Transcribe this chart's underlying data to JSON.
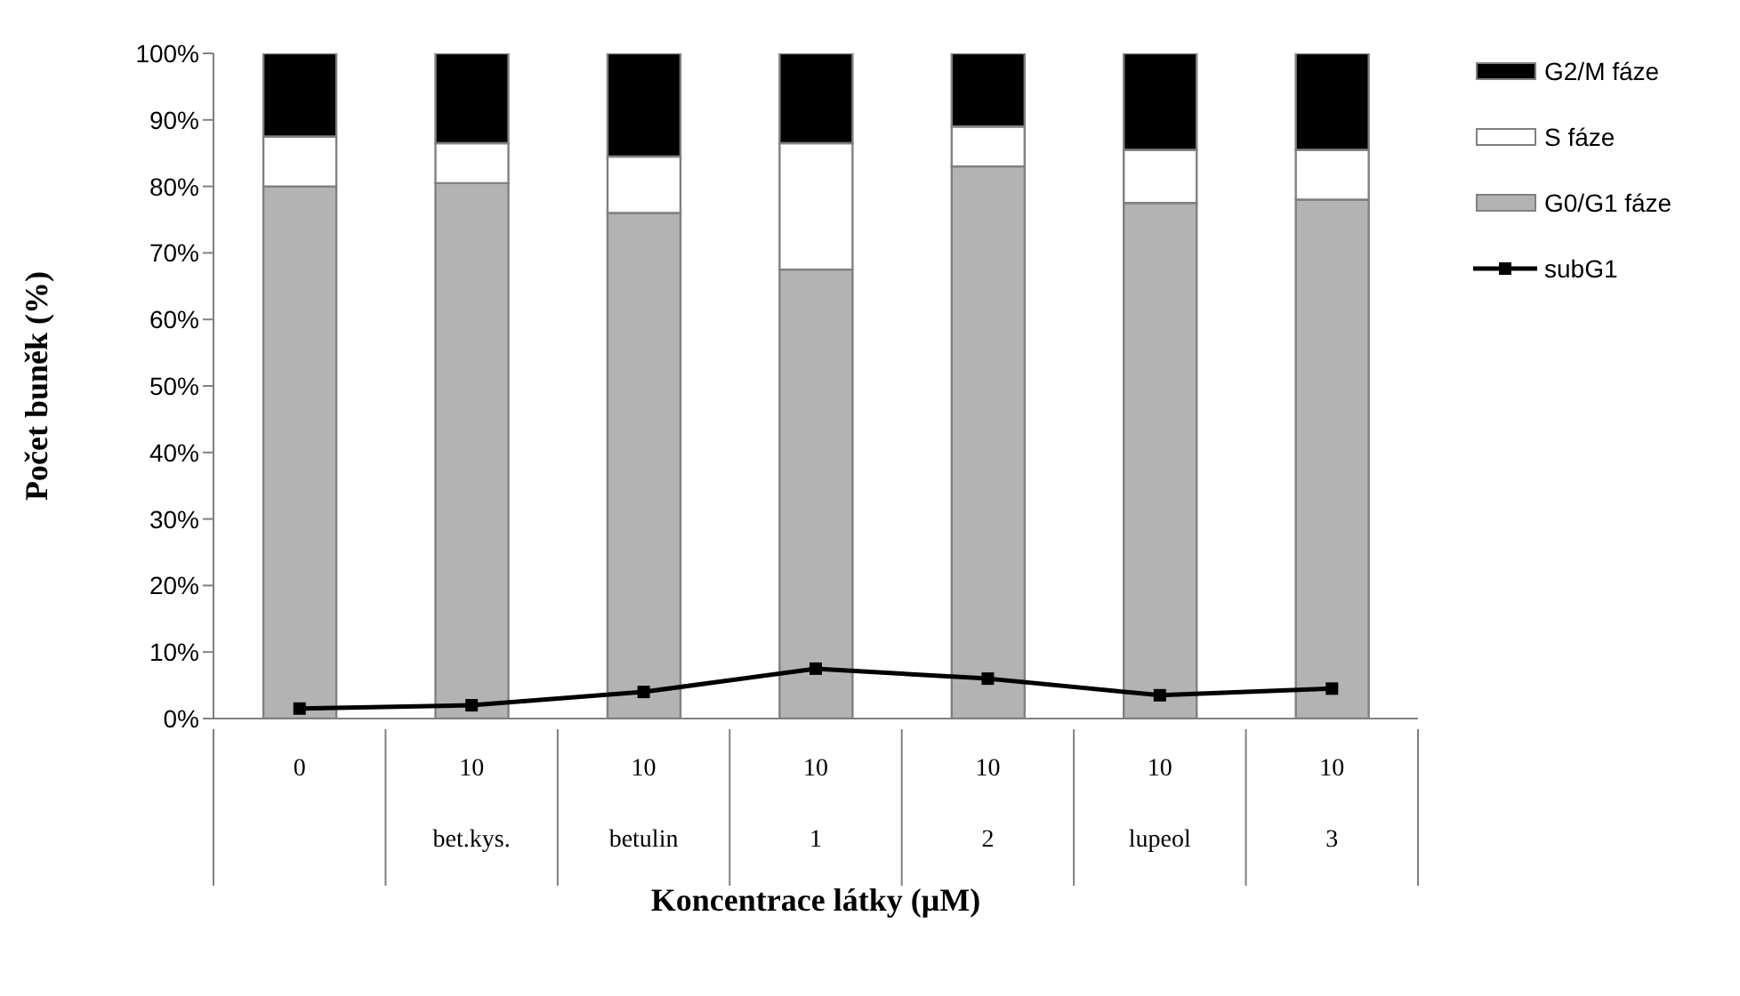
{
  "chart_data": {
    "type": "bar",
    "stacked": true,
    "xlabel": "Koncentrace látky (μM)",
    "ylabel": "Počet buněk (%)",
    "categories": [
      "0",
      "10\nbet.kys.",
      "10\nbetulin",
      "10\n1",
      "10\n2",
      "10\nlupeol",
      "10\n3"
    ],
    "series": [
      {
        "name": "G0/G1 fáze",
        "type": "bar",
        "color": "#b3b3b3",
        "values": [
          80,
          80.5,
          76,
          67.5,
          83,
          77.5,
          78
        ]
      },
      {
        "name": "S fáze",
        "type": "bar",
        "color": "#ffffff",
        "values": [
          7.5,
          6,
          8.5,
          19,
          6,
          8,
          7.5
        ]
      },
      {
        "name": "G2/M fáze",
        "type": "bar",
        "color": "#000000",
        "values": [
          12.5,
          13.5,
          15.5,
          13.5,
          11,
          14.5,
          14.5
        ]
      },
      {
        "name": "subG1",
        "type": "line",
        "color": "#000000",
        "values": [
          1.5,
          2,
          4,
          7.5,
          6,
          3.5,
          4.5
        ]
      }
    ],
    "ylim": [
      0,
      100
    ],
    "yticks": [
      {
        "value": 0,
        "label": "0%"
      },
      {
        "value": 10,
        "label": "10%"
      },
      {
        "value": 20,
        "label": "20%"
      },
      {
        "value": 30,
        "label": "30%"
      },
      {
        "value": 40,
        "label": "40%"
      },
      {
        "value": 50,
        "label": "50%"
      },
      {
        "value": 60,
        "label": "60%"
      },
      {
        "value": 70,
        "label": "70%"
      },
      {
        "value": 80,
        "label": "80%"
      },
      {
        "value": 90,
        "label": "90%"
      },
      {
        "value": 100,
        "label": "100%"
      }
    ],
    "grid": false,
    "legend": "right",
    "marker": "square",
    "line_style": "solid"
  }
}
